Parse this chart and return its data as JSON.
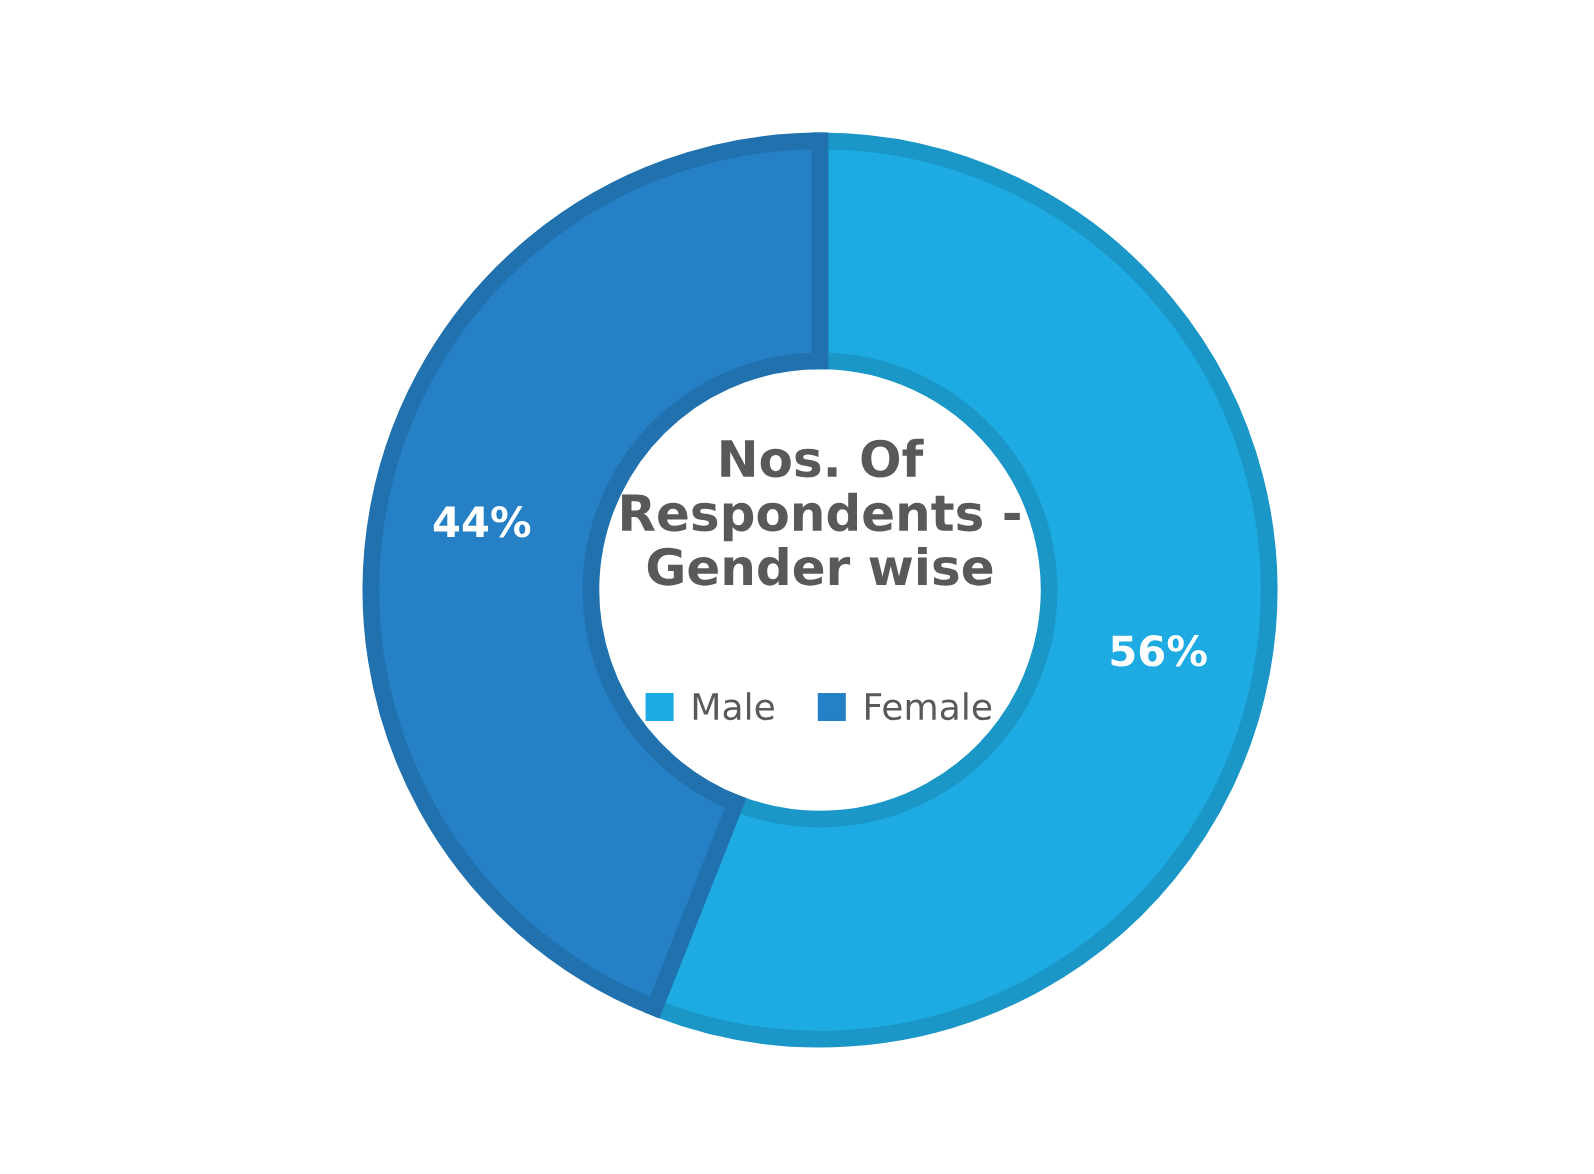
{
  "chart_data": {
    "type": "donut",
    "title": "Nos. Of\nRespondents -\nGender wise",
    "categories": [
      "Male",
      "Female"
    ],
    "values": [
      56,
      44
    ],
    "value_labels": [
      "56%",
      "44%"
    ],
    "colors": [
      "#1eaae2",
      "#2580c6"
    ],
    "legend": "center"
  }
}
